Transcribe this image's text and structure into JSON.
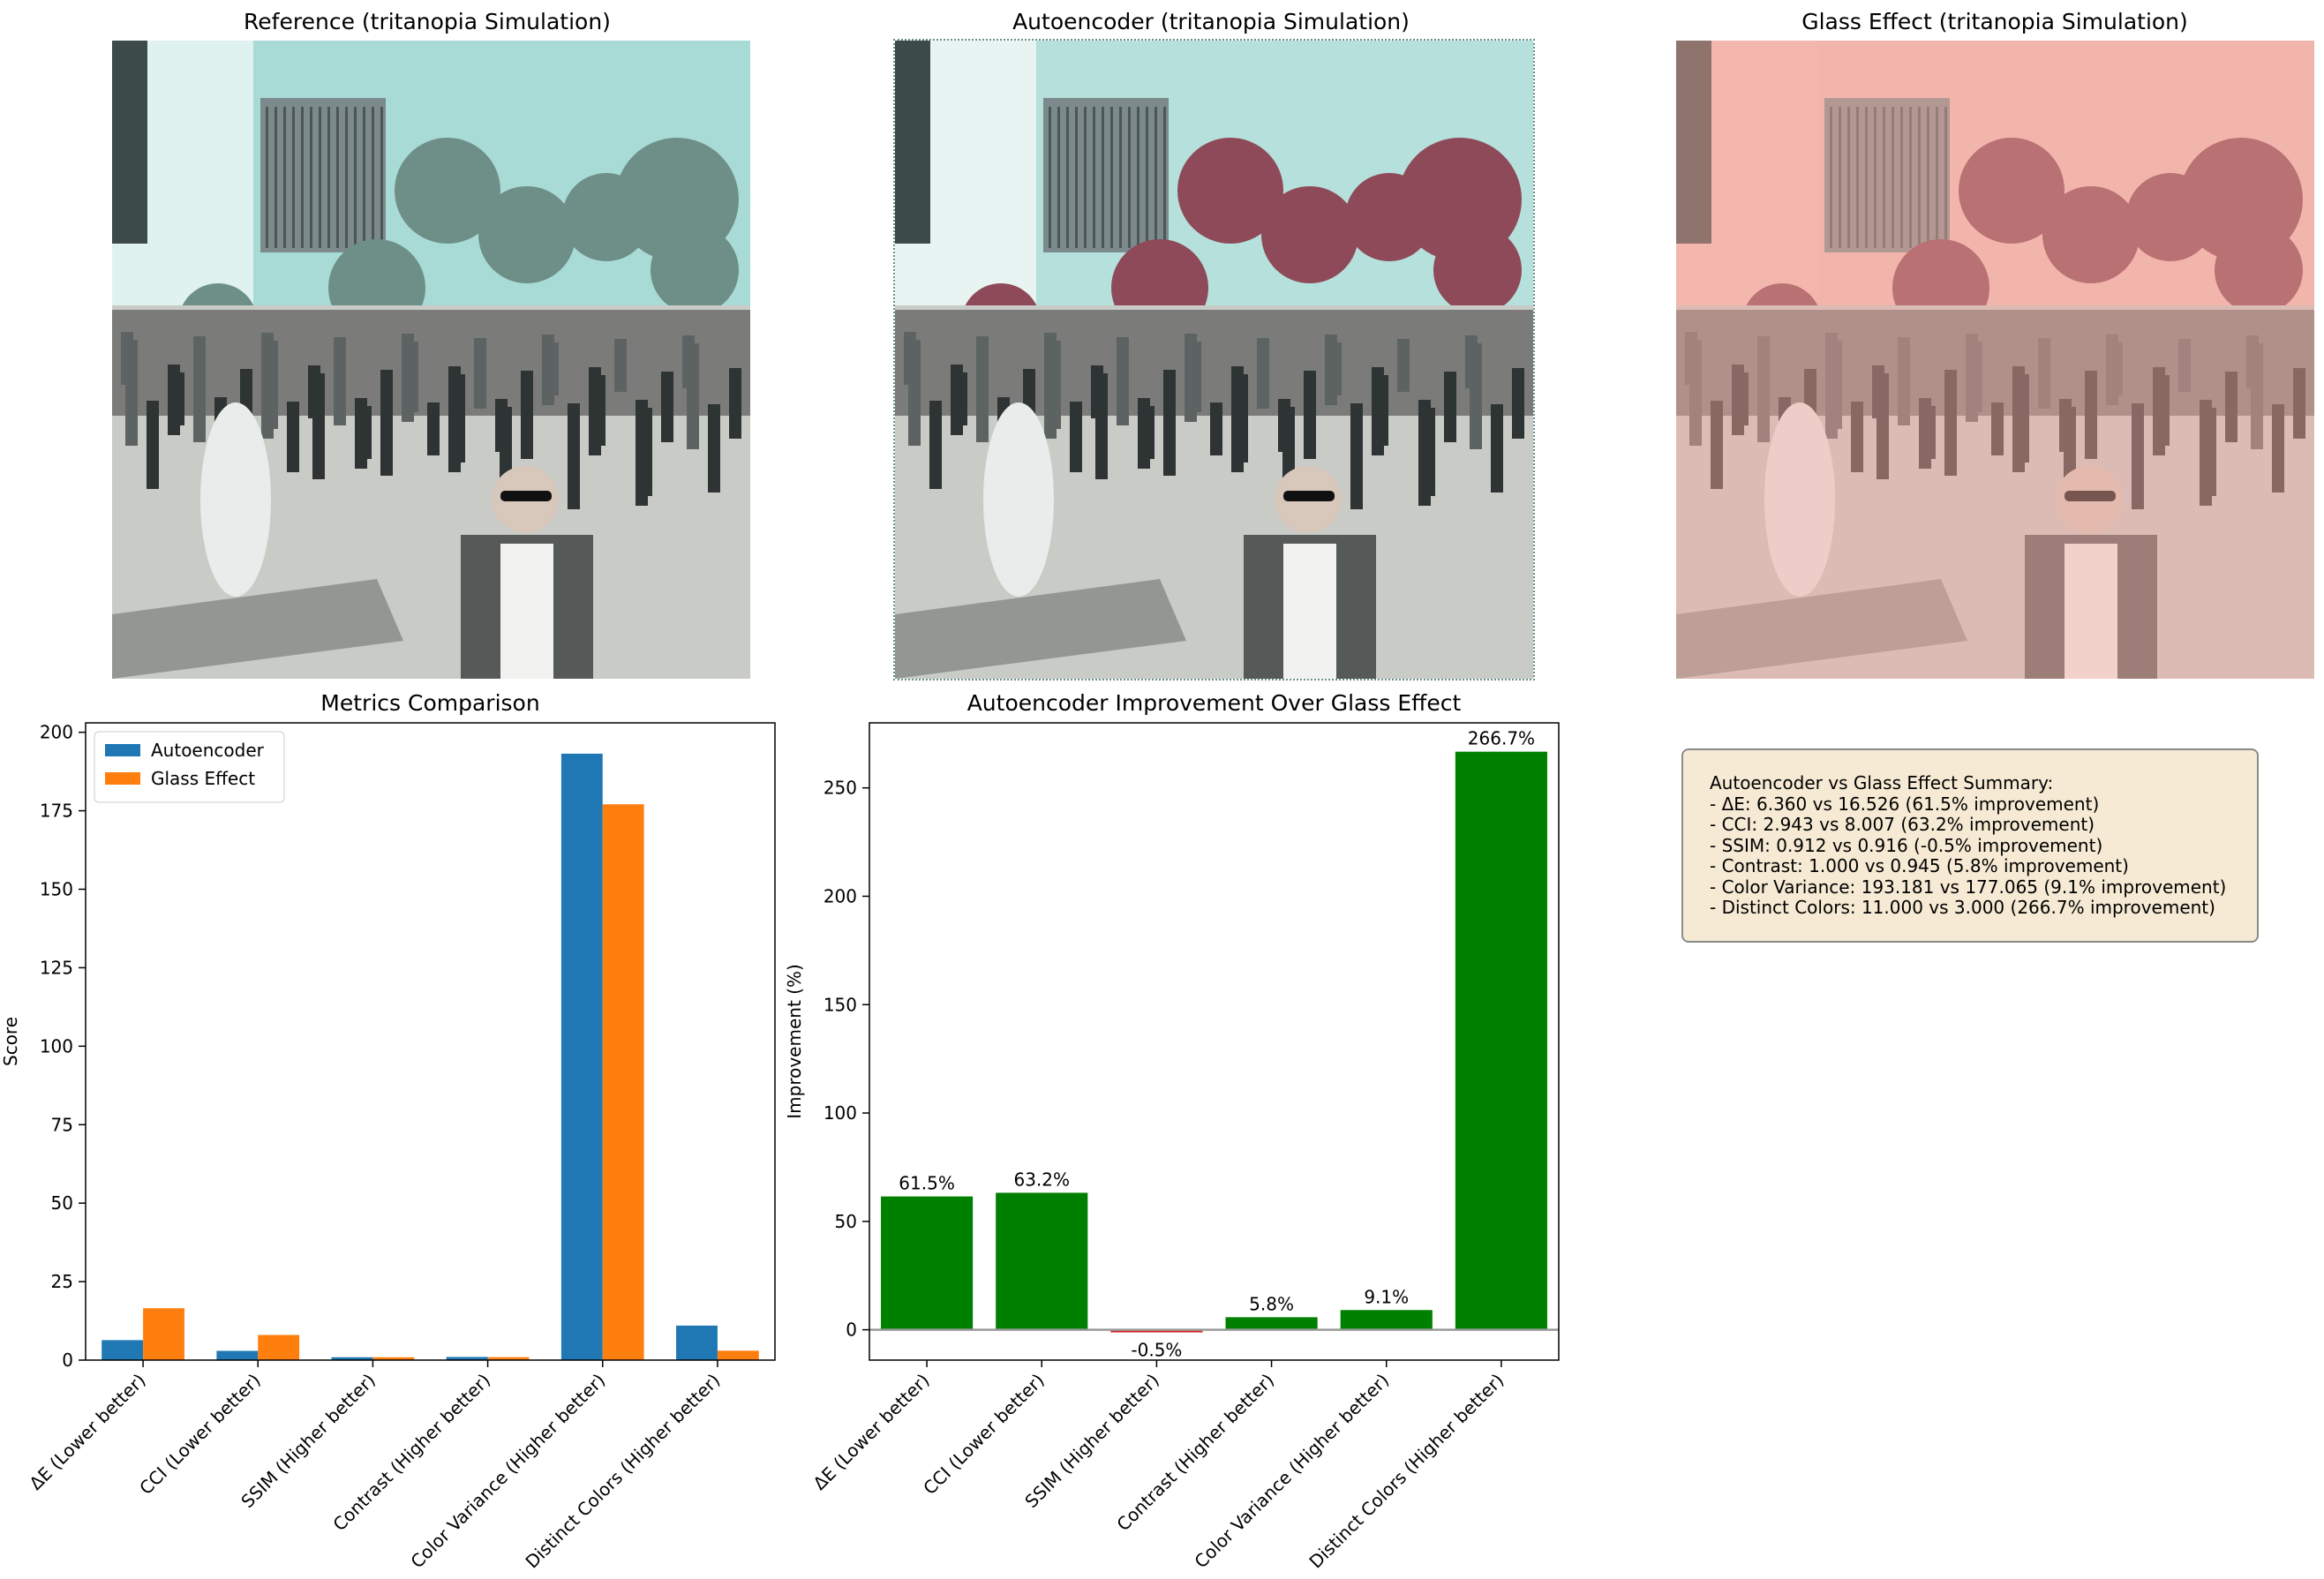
{
  "panels": [
    {
      "title": "Reference (tritanopia Simulation)",
      "tint": "#e4f4f2",
      "tree": "#6e8f88",
      "sky": "#a9dbd6",
      "overlay": "none"
    },
    {
      "title": "Autoencoder (tritanopia Simulation)",
      "tint": "#edf6f4",
      "tree": "#8e4a58",
      "sky": "#b5e0dc",
      "overlay": "none"
    },
    {
      "title": "Glass Effect (tritanopia Simulation)",
      "tint": "#f2c3bc",
      "tree": "#8a4451",
      "sky": "#f0c0b8",
      "overlay": "#f5a89e"
    }
  ],
  "chart_data": [
    {
      "type": "bar",
      "title": "Metrics Comparison",
      "xlabel": "",
      "ylabel": "Score",
      "ylim": [
        0,
        203
      ],
      "yticks": [
        0,
        25,
        50,
        75,
        100,
        125,
        150,
        175,
        200
      ],
      "categories": [
        "ΔE (Lower better)",
        "CCI (Lower better)",
        "SSIM (Higher better)",
        "Contrast (Higher better)",
        "Color Variance (Higher better)",
        "Distinct Colors (Higher better)"
      ],
      "series": [
        {
          "name": "Autoencoder",
          "color": "#1f77b4",
          "values": [
            6.36,
            2.943,
            0.912,
            1.0,
            193.181,
            11.0
          ]
        },
        {
          "name": "Glass Effect",
          "color": "#ff7f0e",
          "values": [
            16.526,
            8.007,
            0.916,
            0.945,
            177.065,
            3.0
          ]
        }
      ],
      "legend": "top-left"
    },
    {
      "type": "bar",
      "title": "Autoencoder Improvement Over Glass Effect",
      "xlabel": "",
      "ylabel": "Improvement (%)",
      "ylim": [
        -14,
        280
      ],
      "yticks": [
        0,
        50,
        100,
        150,
        200,
        250
      ],
      "categories": [
        "ΔE (Lower better)",
        "CCI (Lower better)",
        "SSIM (Higher better)",
        "Contrast (Higher better)",
        "Color Variance (Higher better)",
        "Distinct Colors (Higher better)"
      ],
      "values": [
        61.5,
        63.2,
        -0.5,
        5.8,
        9.1,
        266.7
      ],
      "labels": [
        "61.5%",
        "63.2%",
        "-0.5%",
        "5.8%",
        "9.1%",
        "266.7%"
      ],
      "positive_color": "#008000",
      "negative_color": "#d62728"
    }
  ],
  "summary": {
    "title": "Autoencoder vs Glass Effect Summary:",
    "lines": [
      "- ΔE: 6.360 vs 16.526 (61.5% improvement)",
      "- CCI: 2.943 vs 8.007 (63.2% improvement)",
      "- SSIM: 0.912 vs 0.916 (-0.5% improvement)",
      "- Contrast: 1.000 vs 0.945 (5.8% improvement)",
      "- Color Variance: 193.181 vs 177.065 (9.1% improvement)",
      "- Distinct Colors: 11.000 vs 3.000 (266.7% improvement)"
    ]
  }
}
